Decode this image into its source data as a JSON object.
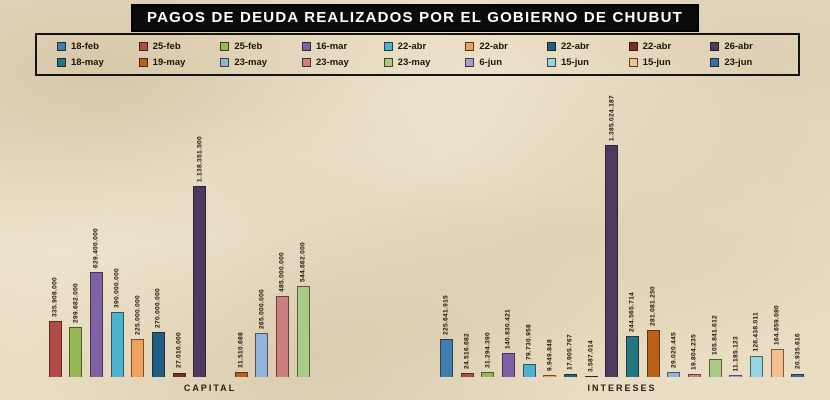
{
  "title": "PAGOS DE DEUDA REALIZADOS POR EL GOBIERNO DE CHUBUT",
  "colors": {
    "background": "#e9ddc3",
    "title_background": "#0b0b0b",
    "title_text": "#ffffff",
    "value_label_text": "#22150a",
    "legend_border": "#141414"
  },
  "chart_data": {
    "type": "bar",
    "title": "PAGOS DE DEUDA REALIZADOS POR EL GOBIERNO DE CHUBUT",
    "categories": [
      "CAPITAL",
      "INTERESES"
    ],
    "legend_position": "top",
    "grid": false,
    "axes_visible": false,
    "ylim": [
      0,
      1450000000
    ],
    "value_label_style": "rotated 90deg, thousands separated by dots",
    "series": [
      {
        "name": "18-feb",
        "color": "#3f7faf",
        "values": [
          null,
          225641915
        ]
      },
      {
        "name": "25-feb",
        "color": "#b04a47",
        "values": [
          335908000,
          24516682
        ]
      },
      {
        "name": "25-feb",
        "color": "#94ba58",
        "values": [
          299682000,
          31294390
        ]
      },
      {
        "name": "16-mar",
        "color": "#7d63a5",
        "values": [
          629400000,
          140830421
        ]
      },
      {
        "name": "22-abr",
        "color": "#4bb3d0",
        "values": [
          390000000,
          79730958
        ]
      },
      {
        "name": "22-abr",
        "color": "#f2a15c",
        "values": [
          225000000,
          9949848
        ]
      },
      {
        "name": "22-abr",
        "color": "#1f5e85",
        "values": [
          270000000,
          17905767
        ]
      },
      {
        "name": "22-abr",
        "color": "#7c2d25",
        "values": [
          27010000,
          3587014
        ]
      },
      {
        "name": "26-abr",
        "color": "#4e3a60",
        "values": [
          1138351500,
          1385024187
        ]
      },
      {
        "name": "18-may",
        "color": "#237682",
        "values": [
          null,
          244565714
        ]
      },
      {
        "name": "19-may",
        "color": "#b96217",
        "values": [
          31510688,
          281081250
        ]
      },
      {
        "name": "23-may",
        "color": "#90b4da",
        "values": [
          265000000,
          29020445
        ]
      },
      {
        "name": "23-may",
        "color": "#cc7e80",
        "values": [
          485000000,
          19804235
        ]
      },
      {
        "name": "23-may",
        "color": "#a9cb88",
        "values": [
          544662000,
          105841612
        ]
      },
      {
        "name": "6-jun",
        "color": "#a79fcc",
        "values": [
          null,
          11185123
        ]
      },
      {
        "name": "15-jun",
        "color": "#93d5e0",
        "values": [
          null,
          126438011
        ]
      },
      {
        "name": "15-jun",
        "color": "#f5bd92",
        "values": [
          null,
          164659080
        ]
      },
      {
        "name": "23-jun",
        "color": "#3470a6",
        "values": [
          null,
          20935616
        ]
      }
    ]
  }
}
